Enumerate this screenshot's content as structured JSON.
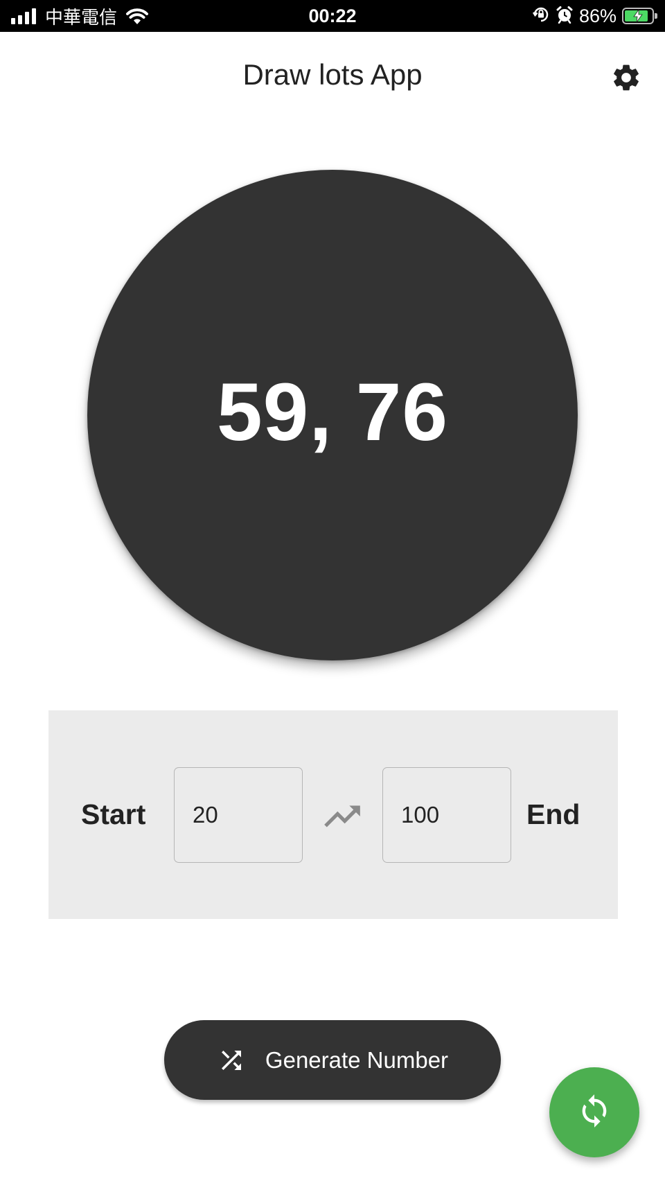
{
  "status_bar": {
    "carrier": "中華電信",
    "time": "00:22",
    "battery_percent": "86%",
    "battery_level": 0.86,
    "icons": [
      "signal-icon",
      "wifi-icon",
      "orientation-lock-icon",
      "alarm-icon",
      "battery-charging-icon"
    ]
  },
  "app_bar": {
    "title": "Draw lots App",
    "settings_icon": "gear-icon"
  },
  "result": {
    "text": "59, 76"
  },
  "range": {
    "start_label": "Start",
    "start_value": "20",
    "end_label": "End",
    "end_value": "100",
    "range_icon": "trending-up-icon"
  },
  "actions": {
    "generate_label": "Generate Number",
    "generate_icon": "shuffle-icon",
    "reset_icon": "refresh-icon"
  },
  "colors": {
    "primary_dark": "#333333",
    "panel_bg": "#ebebeb",
    "fab_green": "#4caf50",
    "battery_green": "#4cd964"
  }
}
